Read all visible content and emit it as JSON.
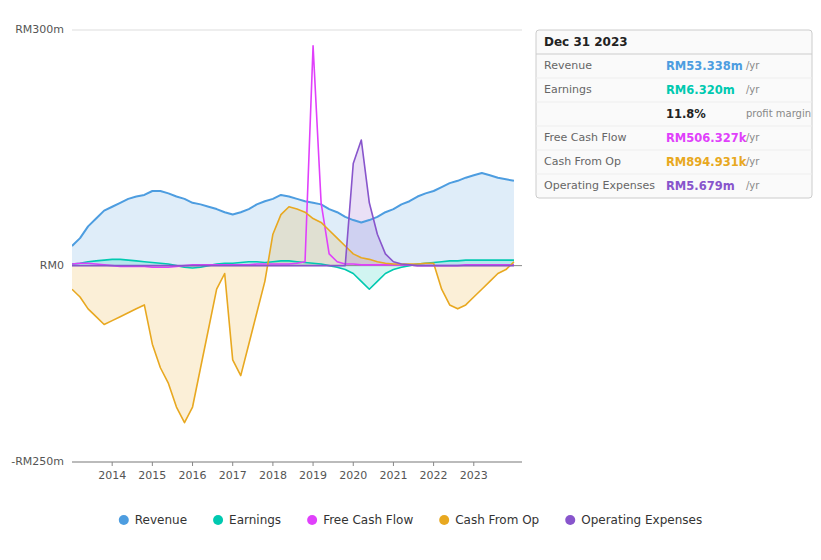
{
  "chart_data": {
    "type": "area",
    "x": [
      2013.0,
      2013.2,
      2013.4,
      2013.6,
      2013.8,
      2014.0,
      2014.2,
      2014.4,
      2014.6,
      2014.8,
      2015.0,
      2015.2,
      2015.4,
      2015.6,
      2015.8,
      2016.0,
      2016.2,
      2016.4,
      2016.6,
      2016.8,
      2017.0,
      2017.2,
      2017.4,
      2017.6,
      2017.8,
      2018.0,
      2018.2,
      2018.4,
      2018.6,
      2018.8,
      2019.0,
      2019.2,
      2019.4,
      2019.6,
      2019.8,
      2020.0,
      2020.2,
      2020.4,
      2020.6,
      2020.8,
      2021.0,
      2021.2,
      2021.4,
      2021.6,
      2021.8,
      2022.0,
      2022.2,
      2022.4,
      2022.6,
      2022.8,
      2023.0,
      2023.2,
      2023.4,
      2023.6,
      2023.8,
      2024.0
    ],
    "series": [
      {
        "name": "Revenue",
        "color": "#4d9de0",
        "type": "area",
        "values": [
          25,
          35,
          50,
          60,
          70,
          75,
          80,
          85,
          88,
          90,
          95,
          95,
          92,
          88,
          85,
          80,
          78,
          75,
          72,
          68,
          65,
          68,
          72,
          78,
          82,
          85,
          90,
          88,
          85,
          82,
          80,
          78,
          72,
          68,
          62,
          58,
          55,
          58,
          62,
          68,
          72,
          78,
          82,
          88,
          92,
          95,
          100,
          105,
          108,
          112,
          115,
          118,
          115,
          112,
          110,
          108
        ]
      },
      {
        "name": "Earnings",
        "color": "#00c9b0",
        "type": "area",
        "values": [
          2,
          3,
          5,
          6,
          7,
          8,
          8,
          7,
          6,
          5,
          4,
          3,
          2,
          0,
          -2,
          -3,
          -2,
          0,
          2,
          3,
          3,
          4,
          5,
          5,
          4,
          5,
          6,
          6,
          5,
          4,
          3,
          2,
          0,
          -2,
          -5,
          -10,
          -20,
          -30,
          -20,
          -10,
          -5,
          -2,
          0,
          2,
          3,
          4,
          5,
          6,
          6,
          7,
          7,
          7,
          7,
          7,
          7,
          7
        ]
      },
      {
        "name": "Free Cash Flow",
        "color": "#e040fb",
        "type": "line",
        "values": [
          2,
          3,
          3,
          2,
          1,
          0,
          -1,
          -1,
          -1,
          -1,
          -2,
          -2,
          -2,
          -1,
          0,
          1,
          1,
          1,
          1,
          1,
          1,
          1,
          1,
          2,
          2,
          2,
          2,
          2,
          3,
          5,
          280,
          80,
          15,
          5,
          2,
          2,
          1,
          1,
          1,
          1,
          1,
          1,
          1,
          0,
          0,
          0,
          0,
          0,
          0,
          1,
          1,
          1,
          1,
          1,
          1,
          1
        ]
      },
      {
        "name": "Cash From Op",
        "color": "#e8a820",
        "type": "area",
        "values": [
          -30,
          -40,
          -55,
          -65,
          -75,
          -70,
          -65,
          -60,
          -55,
          -50,
          -100,
          -130,
          -150,
          -180,
          -200,
          -180,
          -130,
          -80,
          -30,
          -10,
          -120,
          -140,
          -100,
          -60,
          -20,
          40,
          65,
          75,
          72,
          68,
          60,
          55,
          45,
          35,
          25,
          15,
          10,
          8,
          5,
          3,
          2,
          2,
          2,
          2,
          3,
          3,
          -30,
          -50,
          -55,
          -50,
          -40,
          -30,
          -20,
          -10,
          -5,
          5
        ]
      },
      {
        "name": "Operating Expenses",
        "color": "#8855cc",
        "type": "area",
        "values": [
          0,
          0,
          0,
          0,
          0,
          0,
          0,
          0,
          0,
          0,
          0,
          0,
          0,
          0,
          0,
          0,
          0,
          0,
          0,
          0,
          0,
          0,
          0,
          0,
          0,
          0,
          0,
          0,
          0,
          0,
          0,
          0,
          0,
          0,
          0,
          130,
          160,
          80,
          40,
          15,
          5,
          2,
          1,
          0,
          0,
          0,
          0,
          0,
          0,
          0,
          0,
          0,
          0,
          0,
          0,
          0
        ]
      }
    ],
    "xlim": [
      2013.0,
      2024.2
    ],
    "xticks": [
      2014,
      2015,
      2016,
      2017,
      2018,
      2019,
      2020,
      2021,
      2022,
      2023
    ],
    "ylim": [
      -250,
      300
    ],
    "yticks": [
      {
        "value": 300,
        "label": "RM300m"
      },
      {
        "value": 0,
        "label": "RM0"
      },
      {
        "value": -250,
        "label": "-RM250m"
      }
    ],
    "grid": true,
    "legend": "bottom",
    "annotations": [
      {
        "text": "Dec 31 2023"
      },
      {
        "label": "Revenue",
        "text": "RM53.338m",
        "unit": "/yr",
        "color": "#4d9de0"
      },
      {
        "label": "Earnings",
        "text": "RM6.320m",
        "unit": "/yr",
        "color": "#00c9b0"
      },
      {
        "text": "11.8%",
        "unit": "profit margin",
        "color": "#ffffff"
      },
      {
        "label": "Free Cash Flow",
        "text": "RM506.327k",
        "unit": "/yr",
        "color": "#e040fb"
      },
      {
        "label": "Cash From Op",
        "text": "RM894.931k",
        "unit": "/yr",
        "color": "#e8a820"
      },
      {
        "label": "Operating Expenses",
        "text": "RM5.679m",
        "unit": "/yr",
        "color": "#8855cc"
      }
    ]
  }
}
